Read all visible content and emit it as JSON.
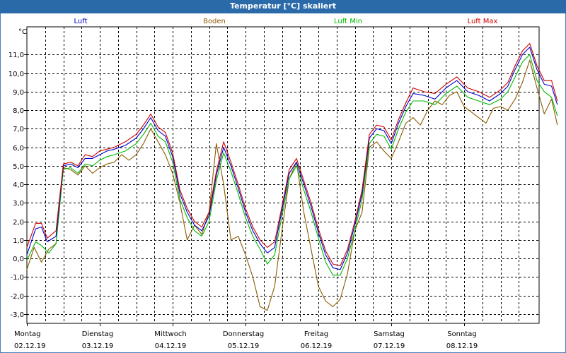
{
  "chart_data": {
    "type": "line",
    "title": "Temperatur [°C] skaliert",
    "ylabel": "°C",
    "ylim": [
      -3.5,
      12.5
    ],
    "yticks": [
      "11,0",
      "10,0",
      "9,0",
      "8,0",
      "7,0",
      "6,0",
      "5,0",
      "4,0",
      "3,0",
      "2,0",
      "1,0",
      "0,0",
      "-1,0",
      "-2,0",
      "-3,0"
    ],
    "ytick_values": [
      11,
      10,
      9,
      8,
      7,
      6,
      5,
      4,
      3,
      2,
      1,
      0,
      -1,
      -2,
      -3
    ],
    "xlim": [
      0,
      7.1
    ],
    "days": [
      {
        "name": "Montag",
        "date": "02.12.19"
      },
      {
        "name": "Dienstag",
        "date": "03.12.19"
      },
      {
        "name": "Mittwoch",
        "date": "04.12.19"
      },
      {
        "name": "Donnerstag",
        "date": "05.12.19"
      },
      {
        "name": "Freitag",
        "date": "06.12.19"
      },
      {
        "name": "Samstag",
        "date": "07.12.19"
      },
      {
        "name": "Sonntag",
        "date": "08.12.19"
      }
    ],
    "grid": true,
    "series": [
      {
        "name": "Luft",
        "color": "#0000cc",
        "points": [
          [
            0,
            0.2
          ],
          [
            0.12,
            1.6
          ],
          [
            0.2,
            1.7
          ],
          [
            0.28,
            0.9
          ],
          [
            0.4,
            1.2
          ],
          [
            0.5,
            5.0
          ],
          [
            0.6,
            5.1
          ],
          [
            0.7,
            4.9
          ],
          [
            0.8,
            5.4
          ],
          [
            0.9,
            5.4
          ],
          [
            1.0,
            5.6
          ],
          [
            1.1,
            5.8
          ],
          [
            1.2,
            5.9
          ],
          [
            1.35,
            6.1
          ],
          [
            1.5,
            6.5
          ],
          [
            1.6,
            7.0
          ],
          [
            1.7,
            7.6
          ],
          [
            1.8,
            6.9
          ],
          [
            1.9,
            6.6
          ],
          [
            2.0,
            5.5
          ],
          [
            2.1,
            3.5
          ],
          [
            2.2,
            2.5
          ],
          [
            2.3,
            1.8
          ],
          [
            2.4,
            1.5
          ],
          [
            2.5,
            2.3
          ],
          [
            2.6,
            4.5
          ],
          [
            2.7,
            6.0
          ],
          [
            2.8,
            5.0
          ],
          [
            2.9,
            3.8
          ],
          [
            3.0,
            2.5
          ],
          [
            3.1,
            1.5
          ],
          [
            3.2,
            0.8
          ],
          [
            3.3,
            0.3
          ],
          [
            3.4,
            0.6
          ],
          [
            3.5,
            2.6
          ],
          [
            3.6,
            4.6
          ],
          [
            3.7,
            5.2
          ],
          [
            3.8,
            4.0
          ],
          [
            3.9,
            2.8
          ],
          [
            4.0,
            1.4
          ],
          [
            4.1,
            0.2
          ],
          [
            4.2,
            -0.5
          ],
          [
            4.3,
            -0.6
          ],
          [
            4.4,
            0.3
          ],
          [
            4.5,
            1.8
          ],
          [
            4.6,
            3.5
          ],
          [
            4.7,
            6.5
          ],
          [
            4.8,
            7.0
          ],
          [
            4.9,
            6.9
          ],
          [
            5.0,
            6.2
          ],
          [
            5.1,
            7.3
          ],
          [
            5.2,
            8.2
          ],
          [
            5.3,
            8.9
          ],
          [
            5.45,
            8.8
          ],
          [
            5.6,
            8.6
          ],
          [
            5.75,
            9.2
          ],
          [
            5.9,
            9.6
          ],
          [
            6.05,
            9.0
          ],
          [
            6.2,
            8.8
          ],
          [
            6.35,
            8.5
          ],
          [
            6.5,
            8.9
          ],
          [
            6.6,
            9.3
          ],
          [
            6.7,
            10.2
          ],
          [
            6.8,
            11.0
          ],
          [
            6.9,
            11.4
          ],
          [
            7.0,
            10.2
          ],
          [
            7.1,
            9.4
          ],
          [
            7.2,
            9.3
          ],
          [
            7.28,
            8.3
          ]
        ]
      },
      {
        "name": "Boden",
        "color": "#8b5a00",
        "points": [
          [
            0,
            -0.6
          ],
          [
            0.1,
            0.6
          ],
          [
            0.2,
            -0.2
          ],
          [
            0.3,
            0.5
          ],
          [
            0.4,
            0.8
          ],
          [
            0.5,
            4.9
          ],
          [
            0.6,
            4.8
          ],
          [
            0.7,
            4.5
          ],
          [
            0.8,
            5.0
          ],
          [
            0.9,
            4.6
          ],
          [
            1.0,
            4.9
          ],
          [
            1.1,
            5.1
          ],
          [
            1.2,
            5.2
          ],
          [
            1.3,
            5.6
          ],
          [
            1.4,
            5.3
          ],
          [
            1.5,
            5.6
          ],
          [
            1.6,
            6.2
          ],
          [
            1.7,
            7.0
          ],
          [
            1.8,
            6.3
          ],
          [
            1.9,
            5.6
          ],
          [
            2.0,
            4.6
          ],
          [
            2.1,
            3.0
          ],
          [
            2.2,
            1.0
          ],
          [
            2.3,
            1.8
          ],
          [
            2.4,
            1.3
          ],
          [
            2.5,
            2.5
          ],
          [
            2.6,
            6.2
          ],
          [
            2.7,
            4.0
          ],
          [
            2.8,
            1.0
          ],
          [
            2.9,
            1.2
          ],
          [
            3.0,
            0.2
          ],
          [
            3.1,
            -1.0
          ],
          [
            3.2,
            -2.6
          ],
          [
            3.3,
            -2.8
          ],
          [
            3.4,
            -1.5
          ],
          [
            3.5,
            1.5
          ],
          [
            3.6,
            4.3
          ],
          [
            3.7,
            5.2
          ],
          [
            3.8,
            2.5
          ],
          [
            3.9,
            0.5
          ],
          [
            4.0,
            -1.5
          ],
          [
            4.1,
            -2.3
          ],
          [
            4.2,
            -2.6
          ],
          [
            4.3,
            -2.2
          ],
          [
            4.4,
            -0.8
          ],
          [
            4.5,
            1.5
          ],
          [
            4.6,
            2.5
          ],
          [
            4.7,
            6.0
          ],
          [
            4.8,
            6.3
          ],
          [
            4.9,
            5.8
          ],
          [
            5.0,
            5.4
          ],
          [
            5.1,
            6.3
          ],
          [
            5.2,
            7.3
          ],
          [
            5.3,
            7.6
          ],
          [
            5.4,
            7.2
          ],
          [
            5.5,
            8.0
          ],
          [
            5.6,
            8.5
          ],
          [
            5.7,
            8.3
          ],
          [
            5.8,
            8.8
          ],
          [
            5.9,
            9.0
          ],
          [
            6.0,
            8.2
          ],
          [
            6.1,
            7.9
          ],
          [
            6.2,
            7.6
          ],
          [
            6.3,
            7.3
          ],
          [
            6.4,
            8.1
          ],
          [
            6.5,
            8.2
          ],
          [
            6.6,
            8.0
          ],
          [
            6.7,
            8.6
          ],
          [
            6.8,
            9.5
          ],
          [
            6.9,
            10.7
          ],
          [
            7.0,
            9.2
          ],
          [
            7.1,
            7.8
          ],
          [
            7.2,
            8.6
          ],
          [
            7.28,
            7.2
          ]
        ]
      },
      {
        "name": "Luft Min",
        "color": "#00b800",
        "points": [
          [
            0,
            -0.1
          ],
          [
            0.12,
            0.9
          ],
          [
            0.2,
            0.7
          ],
          [
            0.3,
            0.3
          ],
          [
            0.4,
            0.8
          ],
          [
            0.5,
            4.8
          ],
          [
            0.6,
            4.9
          ],
          [
            0.7,
            4.6
          ],
          [
            0.8,
            5.1
          ],
          [
            0.9,
            5.0
          ],
          [
            1.0,
            5.3
          ],
          [
            1.1,
            5.5
          ],
          [
            1.2,
            5.6
          ],
          [
            1.35,
            5.8
          ],
          [
            1.5,
            6.2
          ],
          [
            1.6,
            6.7
          ],
          [
            1.7,
            7.3
          ],
          [
            1.8,
            6.6
          ],
          [
            1.9,
            6.3
          ],
          [
            2.0,
            5.2
          ],
          [
            2.1,
            3.2
          ],
          [
            2.2,
            2.2
          ],
          [
            2.3,
            1.5
          ],
          [
            2.4,
            1.2
          ],
          [
            2.5,
            2.0
          ],
          [
            2.6,
            4.2
          ],
          [
            2.7,
            5.7
          ],
          [
            2.8,
            4.7
          ],
          [
            2.9,
            3.5
          ],
          [
            3.0,
            2.2
          ],
          [
            3.1,
            1.2
          ],
          [
            3.2,
            0.5
          ],
          [
            3.3,
            -0.3
          ],
          [
            3.4,
            0.2
          ],
          [
            3.5,
            2.3
          ],
          [
            3.6,
            4.3
          ],
          [
            3.7,
            5.0
          ],
          [
            3.8,
            3.7
          ],
          [
            3.9,
            2.5
          ],
          [
            4.0,
            1.1
          ],
          [
            4.1,
            -0.2
          ],
          [
            4.2,
            -0.9
          ],
          [
            4.3,
            -0.9
          ],
          [
            4.4,
            0.0
          ],
          [
            4.5,
            1.5
          ],
          [
            4.6,
            3.2
          ],
          [
            4.7,
            6.2
          ],
          [
            4.8,
            6.7
          ],
          [
            4.9,
            6.6
          ],
          [
            5.0,
            5.9
          ],
          [
            5.1,
            7.0
          ],
          [
            5.2,
            7.9
          ],
          [
            5.3,
            8.5
          ],
          [
            5.45,
            8.5
          ],
          [
            5.6,
            8.3
          ],
          [
            5.75,
            8.9
          ],
          [
            5.9,
            9.3
          ],
          [
            6.05,
            8.7
          ],
          [
            6.2,
            8.5
          ],
          [
            6.35,
            8.3
          ],
          [
            6.5,
            8.6
          ],
          [
            6.6,
            9.0
          ],
          [
            6.7,
            9.8
          ],
          [
            6.8,
            10.6
          ],
          [
            6.9,
            11.0
          ],
          [
            7.0,
            9.6
          ],
          [
            7.1,
            9.0
          ],
          [
            7.2,
            8.7
          ],
          [
            7.28,
            7.7
          ]
        ]
      },
      {
        "name": "Luft Max",
        "color": "#cc0000",
        "points": [
          [
            0,
            0.6
          ],
          [
            0.12,
            1.9
          ],
          [
            0.2,
            1.9
          ],
          [
            0.28,
            1.1
          ],
          [
            0.4,
            1.5
          ],
          [
            0.5,
            5.1
          ],
          [
            0.6,
            5.2
          ],
          [
            0.7,
            5.0
          ],
          [
            0.8,
            5.6
          ],
          [
            0.9,
            5.5
          ],
          [
            1.0,
            5.8
          ],
          [
            1.1,
            5.9
          ],
          [
            1.2,
            6.0
          ],
          [
            1.35,
            6.3
          ],
          [
            1.5,
            6.7
          ],
          [
            1.6,
            7.2
          ],
          [
            1.7,
            7.8
          ],
          [
            1.8,
            7.1
          ],
          [
            1.9,
            6.8
          ],
          [
            2.0,
            5.7
          ],
          [
            2.1,
            3.7
          ],
          [
            2.2,
            2.7
          ],
          [
            2.3,
            2.0
          ],
          [
            2.4,
            1.7
          ],
          [
            2.5,
            2.5
          ],
          [
            2.6,
            4.7
          ],
          [
            2.7,
            6.3
          ],
          [
            2.8,
            5.2
          ],
          [
            2.9,
            4.0
          ],
          [
            3.0,
            2.7
          ],
          [
            3.1,
            1.7
          ],
          [
            3.2,
            1.0
          ],
          [
            3.3,
            0.6
          ],
          [
            3.4,
            0.9
          ],
          [
            3.5,
            2.8
          ],
          [
            3.6,
            4.8
          ],
          [
            3.7,
            5.4
          ],
          [
            3.8,
            4.2
          ],
          [
            3.9,
            3.0
          ],
          [
            4.0,
            1.6
          ],
          [
            4.1,
            0.4
          ],
          [
            4.2,
            -0.3
          ],
          [
            4.3,
            -0.4
          ],
          [
            4.4,
            0.5
          ],
          [
            4.5,
            2.0
          ],
          [
            4.6,
            3.7
          ],
          [
            4.7,
            6.7
          ],
          [
            4.8,
            7.2
          ],
          [
            4.9,
            7.1
          ],
          [
            5.0,
            6.4
          ],
          [
            5.1,
            7.5
          ],
          [
            5.2,
            8.4
          ],
          [
            5.3,
            9.2
          ],
          [
            5.45,
            9.0
          ],
          [
            5.6,
            8.9
          ],
          [
            5.75,
            9.4
          ],
          [
            5.9,
            9.8
          ],
          [
            6.05,
            9.2
          ],
          [
            6.2,
            9.0
          ],
          [
            6.35,
            8.7
          ],
          [
            6.5,
            9.1
          ],
          [
            6.6,
            9.5
          ],
          [
            6.7,
            10.4
          ],
          [
            6.8,
            11.2
          ],
          [
            6.9,
            11.6
          ],
          [
            7.0,
            10.4
          ],
          [
            7.1,
            9.6
          ],
          [
            7.2,
            9.6
          ],
          [
            7.28,
            8.5
          ]
        ]
      }
    ]
  }
}
